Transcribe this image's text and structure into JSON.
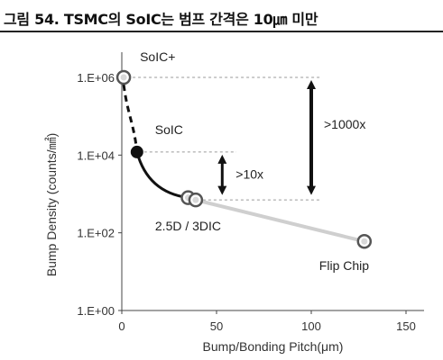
{
  "figure": {
    "title": "그림 54. TSMC의 SoIC는 범프 간격은 10㎛ 미만"
  },
  "chart_data": {
    "type": "line",
    "xlabel": "Bump/Bonding Pitch(μm)",
    "ylabel": "Bump Density (counts/㎟)",
    "xlim": [
      0,
      150
    ],
    "ylim_log10": [
      0,
      6
    ],
    "log_scale_y": true,
    "grid": false,
    "x_ticks": [
      0,
      50,
      100,
      150
    ],
    "x_tick_labels": [
      "0",
      "50",
      "100",
      "150"
    ],
    "y_ticks": [
      0,
      2,
      4,
      6
    ],
    "y_tick_labels": [
      "1.E+00",
      "1.E+02",
      "1.E+04",
      "1.E+06"
    ],
    "points": [
      {
        "label": "SoIC+",
        "x": 1,
        "y": 1000000,
        "style": "hollow"
      },
      {
        "label": "SoIC",
        "x": 8,
        "y": 12000,
        "style": "filled"
      },
      {
        "label": "",
        "x": 35,
        "y": 800,
        "style": "hollow"
      },
      {
        "label": "2.5D / 3DIC",
        "x": 39,
        "y": 700,
        "style": "hollow"
      },
      {
        "label": "Flip Chip",
        "x": 128,
        "y": 60,
        "style": "hollow"
      }
    ],
    "segments": [
      {
        "from": 0,
        "to": 1,
        "style": "dashed-black"
      },
      {
        "from": 1,
        "to": 2,
        "style": "solid-black"
      },
      {
        "from": 3,
        "to": 4,
        "style": "solid-gray"
      }
    ],
    "annotations": [
      {
        "text": ">10x",
        "from_y": 12000,
        "to_y": 800,
        "x": 53
      },
      {
        "text": ">1000x",
        "from_y": 1000000,
        "to_y": 800,
        "x": 100
      }
    ]
  }
}
